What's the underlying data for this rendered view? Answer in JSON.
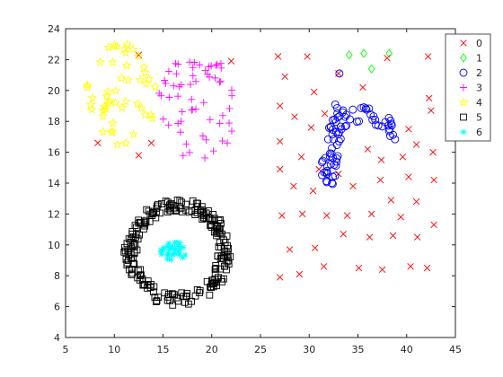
{
  "chart_data": {
    "type": "scatter",
    "xlim": [
      5,
      45
    ],
    "ylim": [
      4,
      24
    ],
    "xticks": [
      5,
      10,
      15,
      20,
      25,
      30,
      35,
      40,
      45
    ],
    "yticks": [
      4,
      6,
      8,
      10,
      12,
      14,
      16,
      18,
      20,
      22,
      24
    ],
    "x_tick_labels": [
      "5",
      "10",
      "15",
      "20",
      "25",
      "30",
      "35",
      "40",
      "45"
    ],
    "y_tick_labels": [
      "4",
      "6",
      "8",
      "10",
      "12",
      "14",
      "16",
      "18",
      "20",
      "22",
      "24"
    ],
    "grid": false,
    "legend_position": "top-right",
    "series": [
      {
        "name": "0",
        "marker": "x",
        "color": "#ff0000",
        "x": [],
        "y": []
      },
      {
        "name": "1",
        "marker": "diamond",
        "color": "#00ff00",
        "x": [],
        "y": []
      },
      {
        "name": "2",
        "marker": "circle",
        "color": "#0000ff",
        "x": [],
        "y": []
      },
      {
        "name": "3",
        "marker": "plus",
        "color": "#ff00ff",
        "x": [],
        "y": []
      },
      {
        "name": "4",
        "marker": "star",
        "color": "#ffff00",
        "x": [],
        "y": []
      },
      {
        "name": "5",
        "marker": "square",
        "color": "#000000",
        "x": [],
        "y": []
      },
      {
        "name": "6",
        "marker": "asterisk",
        "color": "#00ffff",
        "x": [],
        "y": []
      }
    ]
  }
}
